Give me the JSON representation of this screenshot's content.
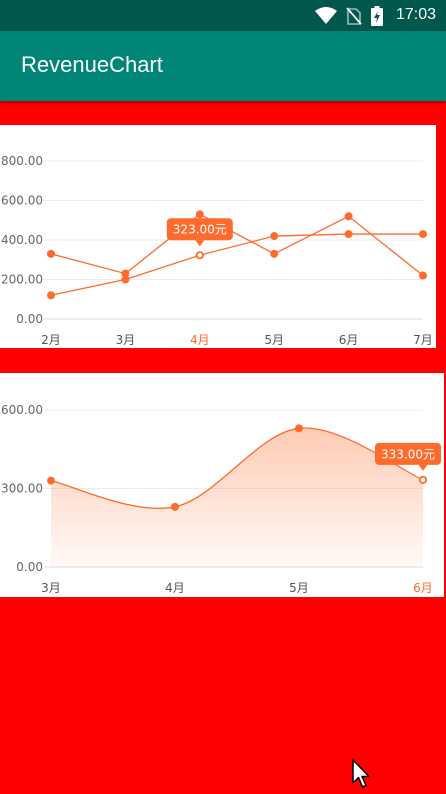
{
  "status_bar": {
    "time": "17:03",
    "icons": [
      "wifi-icon",
      "no-sim-icon",
      "battery-charging-icon"
    ]
  },
  "app_bar": {
    "title": "RevenueChart"
  },
  "colors": {
    "accent": "#ff6b2c",
    "background": "#ff0000",
    "app_bar": "#008577",
    "status_bar": "#00574b"
  },
  "chart_data": [
    {
      "type": "line",
      "categories": [
        "2月",
        "3月",
        "4月",
        "5月",
        "6月",
        "7月"
      ],
      "y_ticks": [
        "0.00",
        "200.00",
        "400.00",
        "600.00",
        "800.00"
      ],
      "ylim": [
        0,
        800
      ],
      "series": [
        {
          "values": [
            120,
            200,
            323,
            420,
            430,
            430
          ]
        },
        {
          "values": [
            330,
            230,
            530,
            330,
            520,
            220
          ]
        }
      ],
      "selected_index": 2,
      "tooltip": "323.00元",
      "grid": true
    },
    {
      "type": "area",
      "categories": [
        "3月",
        "4月",
        "5月",
        "6月"
      ],
      "y_ticks": [
        "0.00",
        "300.00",
        "600.00"
      ],
      "ylim": [
        0,
        600
      ],
      "series": [
        {
          "values": [
            330,
            230,
            530,
            333
          ]
        }
      ],
      "selected_index": 3,
      "tooltip": "333.00元",
      "smooth": true,
      "grid": true
    }
  ]
}
